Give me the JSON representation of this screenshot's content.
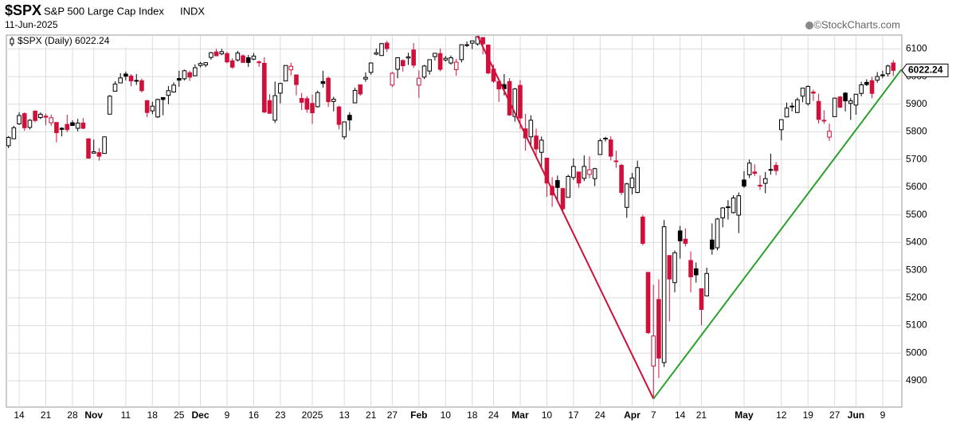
{
  "chart_data": {
    "type": "candlestick",
    "symbol": "$SPX",
    "name": "S&P 500 Large Cap Index",
    "exchange": "INDX",
    "date": "11-Jun-2025",
    "source": "©StockCharts.com",
    "legend": "$SPX (Daily) 6022.24",
    "last_price": 6022.24,
    "up_color": "#000000",
    "down_color": "#d0103a",
    "grid": true,
    "ylim": [
      4805,
      6150
    ],
    "yticks": [
      4900,
      5000,
      5100,
      5200,
      5300,
      5400,
      5500,
      5600,
      5700,
      5800,
      5900,
      6000,
      6100
    ],
    "categories": [
      null,
      null,
      "14",
      null,
      null,
      null,
      null,
      "21",
      null,
      null,
      null,
      null,
      "28",
      null,
      null,
      null,
      "Nov",
      null,
      null,
      null,
      null,
      null,
      "11",
      null,
      null,
      null,
      null,
      "18",
      null,
      null,
      null,
      null,
      "25",
      null,
      null,
      null,
      "Dec",
      null,
      null,
      null,
      null,
      "9",
      null,
      null,
      null,
      null,
      "16",
      null,
      null,
      null,
      null,
      "23",
      null,
      null,
      null,
      null,
      null,
      "2025",
      null,
      null,
      null,
      null,
      null,
      "13",
      null,
      null,
      null,
      null,
      "21",
      null,
      null,
      null,
      "27",
      null,
      null,
      null,
      null,
      "Feb",
      null,
      null,
      null,
      null,
      "10",
      null,
      null,
      null,
      null,
      "18",
      null,
      null,
      null,
      "24",
      null,
      null,
      null,
      null,
      "Mar",
      null,
      null,
      null,
      null,
      "10",
      null,
      null,
      null,
      null,
      "17",
      null,
      null,
      null,
      null,
      "24",
      null,
      null,
      null,
      null,
      null,
      "Apr",
      null,
      null,
      null,
      "7",
      null,
      null,
      null,
      null,
      "14",
      null,
      null,
      null,
      "21",
      null,
      null,
      null,
      null,
      null,
      null,
      null,
      "May",
      null,
      null,
      null,
      null,
      null,
      null,
      "12",
      null,
      null,
      null,
      null,
      "19",
      null,
      null,
      null,
      null,
      "27",
      null,
      null,
      null,
      "Jun",
      null,
      null,
      null,
      null,
      "9",
      null,
      null
    ],
    "open": [
      5750,
      5775,
      5829,
      5866,
      5816,
      5875,
      5852,
      5857,
      5833,
      5834,
      5813,
      5827,
      5833,
      5813,
      5832,
      5775,
      5723,
      5725,
      5722,
      5864,
      5947,
      5977,
      6009,
      6002,
      5986,
      5985,
      5913,
      5876,
      5854,
      5924,
      5932,
      5944,
      5993,
      5992,
      6014,
      6003,
      6040,
      6042,
      6069,
      6089,
      6082,
      6083,
      6057,
      6060,
      6075,
      6068,
      6063,
      6053,
      6048,
      5913,
      5842,
      5940,
      5984,
      6024,
      6006,
      5921,
      5920,
      5903,
      5891,
      5982,
      5994,
      5910,
      5890,
      5782,
      5860,
      5905,
      5970,
      5991,
      6015,
      6081,
      6076,
      6121,
      5969,
      6026,
      6058,
      6067,
      6096,
      5969,
      5998,
      6020,
      6072,
      6083,
      6060,
      6049,
      6025,
      6061,
      6115,
      6121,
      6118,
      6141,
      6114,
      6027,
      5982,
      5971,
      5982,
      5856,
      5968,
      5811,
      5782,
      5785,
      5726,
      5705,
      5603,
      5624,
      5595,
      5563,
      5635,
      5655,
      5632,
      5646,
      5631,
      5718,
      5775,
      5771,
      5695,
      5679,
      5527,
      5598,
      5581,
      5492,
      5292,
      4953,
      5194,
      4966,
      5353,
      5255,
      5442,
      5412,
      5335,
      5305,
      5233,
      5207,
      5409,
      5381,
      5489,
      5529,
      5508,
      5499,
      5626,
      5645,
      5655,
      5605,
      5614,
      5663,
      5679,
      5808,
      5854,
      5893,
      5870,
      5929,
      5902,
      5944,
      5910,
      5841,
      5781,
      5855,
      5926,
      5940,
      5903,
      5897,
      5939,
      5979,
      5985,
      5987,
      6005,
      6010,
      6049
    ],
    "high": [
      5785,
      5822,
      5871,
      5870,
      5846,
      5878,
      5870,
      5866,
      5863,
      5834,
      5817,
      5862,
      5842,
      5847,
      5850,
      5775,
      5772,
      5741,
      5783,
      5933,
      5983,
      6012,
      6018,
      6008,
      6009,
      5993,
      5915,
      5909,
      5920,
      5925,
      5966,
      5979,
      6021,
      6025,
      6021,
      6044,
      6053,
      6052,
      6089,
      6100,
      6100,
      6089,
      6066,
      6093,
      6080,
      6078,
      6085,
      6058,
      6070,
      5936,
      5982,
      5978,
      6040,
      6050,
      6006,
      5941,
      5929,
      5935,
      5949,
      6021,
      6000,
      5927,
      5895,
      5837,
      5871,
      5960,
      5970,
      6015,
      6051,
      6101,
      6121,
      6129,
      6017,
      6070,
      6062,
      6086,
      6121,
      6022,
      6042,
      6062,
      6084,
      6101,
      6074,
      6076,
      6064,
      6116,
      6127,
      6129,
      6147,
      6141,
      6114,
      6043,
      5993,
      6009,
      5994,
      5959,
      5987,
      5865,
      5860,
      5812,
      5783,
      5705,
      5636,
      5642,
      5598,
      5645,
      5704,
      5656,
      5715,
      5711,
      5670,
      5776,
      5782,
      5784,
      5732,
      5685,
      5616,
      5652,
      5696,
      5500,
      5293,
      5247,
      5267,
      5481,
      5353,
      5371,
      5460,
      5451,
      5368,
      5328,
      5233,
      5309,
      5469,
      5489,
      5528,
      5553,
      5571,
      5581,
      5658,
      5700,
      5683,
      5643,
      5655,
      5721,
      5691,
      5845,
      5906,
      5906,
      5924,
      5958,
      5968,
      5953,
      5938,
      5878,
      5830,
      5924,
      5930,
      5944,
      5922,
      5937,
      5981,
      5990,
      5999,
      6016,
      6021,
      6043,
      6059
    ],
    "low": [
      5741,
      5775,
      5825,
      5804,
      5809,
      5835,
      5846,
      5824,
      5822,
      5762,
      5784,
      5799,
      5823,
      5802,
      5810,
      5703,
      5723,
      5696,
      5722,
      5864,
      5947,
      5976,
      5986,
      5965,
      5970,
      5942,
      5853,
      5864,
      5850,
      5860,
      5900,
      5942,
      5963,
      5986,
      5984,
      6003,
      6033,
      6034,
      6061,
      6076,
      6077,
      6048,
      6028,
      6054,
      6051,
      6035,
      6059,
      6035,
      5867,
      5866,
      5832,
      5903,
      5983,
      6004,
      5932,
      5879,
      5869,
      5829,
      5888,
      5960,
      5890,
      5874,
      5809,
      5773,
      5805,
      5905,
      5930,
      5981,
      6007,
      6077,
      6075,
      6089,
      5962,
      5994,
      6018,
      6042,
      6031,
      5923,
      5991,
      6007,
      6058,
      6019,
      6054,
      6043,
      6003,
      6051,
      6107,
      6099,
      6112,
      6080,
      6008,
      5977,
      5908,
      5932,
      5858,
      5837,
      5810,
      5732,
      5745,
      5711,
      5666,
      5565,
      5529,
      5546,
      5505,
      5563,
      5626,
      5598,
      5622,
      5632,
      5604,
      5718,
      5765,
      5697,
      5670,
      5572,
      5489,
      5574,
      5578,
      5390,
      5070,
      4835,
      4910,
      4950,
      5115,
      5220,
      5342,
      5386,
      5220,
      5255,
      5101,
      5207,
      5356,
      5372,
      5455,
      5483,
      5505,
      5434,
      5597,
      5633,
      5640,
      5590,
      5578,
      5645,
      5644,
      5769,
      5853,
      5874,
      5868,
      5907,
      5895,
      5912,
      5830,
      5829,
      5767,
      5855,
      5886,
      5874,
      5843,
      5862,
      5929,
      5966,
      5921,
      5978,
      5994,
      6000,
      6002
    ],
    "close": [
      5780,
      5815,
      5859,
      5815,
      5842,
      5841,
      5864,
      5853,
      5851,
      5797,
      5809,
      5808,
      5823,
      5832,
      5813,
      5705,
      5728,
      5712,
      5782,
      5929,
      5973,
      5995,
      6001,
      5984,
      5985,
      5949,
      5870,
      5893,
      5917,
      5917,
      5949,
      5969,
      5987,
      6021,
      5998,
      6032,
      6047,
      6050,
      6086,
      6075,
      6090,
      6053,
      6034,
      6085,
      6051,
      6051,
      6074,
      6050,
      5872,
      5867,
      5931,
      5975,
      6040,
      6037,
      5971,
      5907,
      5882,
      5869,
      5942,
      5975,
      5909,
      5918,
      5827,
      5836,
      5843,
      5950,
      5937,
      5997,
      6049,
      6086,
      6119,
      6101,
      6012,
      6068,
      6039,
      6071,
      6041,
      5994,
      6038,
      6061,
      6084,
      6026,
      6066,
      6068,
      6052,
      6115,
      6115,
      6129,
      6144,
      6118,
      6013,
      5983,
      5955,
      5956,
      5861,
      5955,
      5850,
      5778,
      5842,
      5738,
      5770,
      5615,
      5572,
      5599,
      5522,
      5639,
      5675,
      5615,
      5675,
      5663,
      5667,
      5768,
      5777,
      5712,
      5693,
      5581,
      5612,
      5633,
      5671,
      5397,
      5074,
      5062,
      4982,
      5457,
      5268,
      5363,
      5406,
      5397,
      5276,
      5283,
      5158,
      5288,
      5376,
      5485,
      5525,
      5529,
      5561,
      5569,
      5604,
      5687,
      5650,
      5607,
      5631,
      5664,
      5660,
      5844,
      5886,
      5892,
      5916,
      5958,
      5964,
      5940,
      5845,
      5842,
      5802,
      5922,
      5889,
      5912,
      5912,
      5936,
      5970,
      5971,
      5939,
      6000,
      6006,
      6038,
      6022.24
    ],
    "trendlines": [
      {
        "color": "#d0103a",
        "from": 88,
        "to": 121,
        "values": [
          6147,
          4835
        ]
      },
      {
        "color": "#2ca02c",
        "from": 121,
        "to": 167.5,
        "values": [
          4835,
          6025
        ]
      }
    ]
  }
}
